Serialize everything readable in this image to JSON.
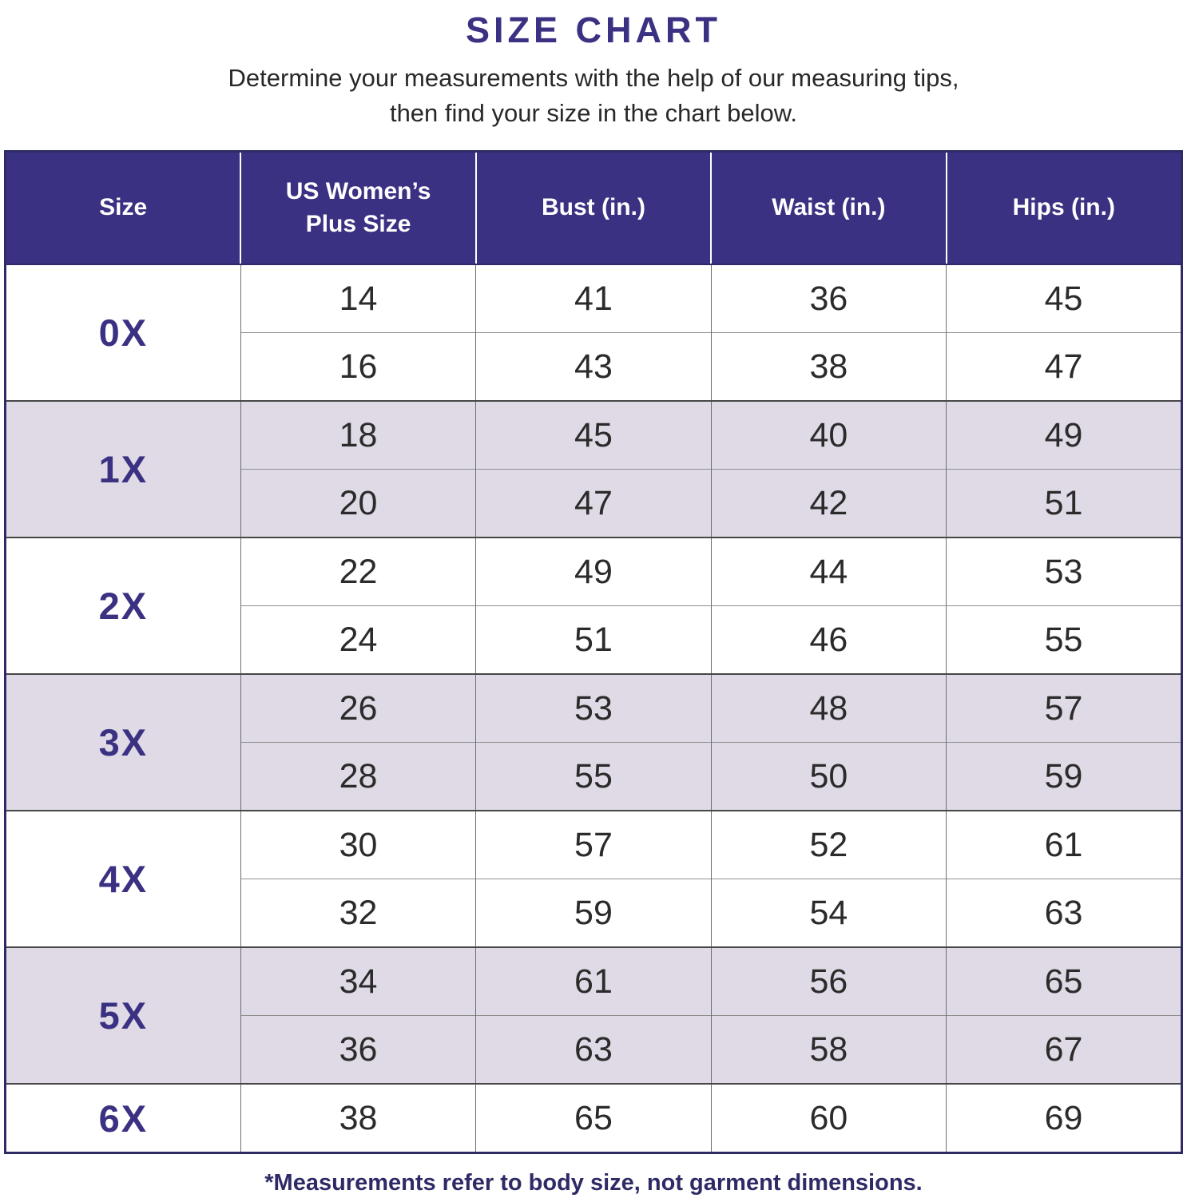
{
  "title": "SIZE CHART",
  "subtitle_line1": "Determine your measurements with the help of our measuring tips,",
  "subtitle_line2": "then find your size in the chart below.",
  "footnote": "*Measurements refer to body size, not garment dimensions.",
  "colors": {
    "accent_purple": "#3B3183",
    "row_alt_bg": "#DFDAE5",
    "row_bg": "#FFFFFF",
    "outer_border": "#2D2A66",
    "body_text": "#2B2B2B",
    "header_text": "#FFFFFF"
  },
  "chart_data": {
    "type": "table",
    "title": "SIZE CHART",
    "columns": [
      "Size",
      "US Women’s Plus Size",
      "Bust (in.)",
      "Waist (in.)",
      "Hips (in.)"
    ],
    "groups": [
      {
        "size": "0X",
        "rows": [
          [
            14,
            41,
            36,
            45
          ],
          [
            16,
            43,
            38,
            47
          ]
        ]
      },
      {
        "size": "1X",
        "rows": [
          [
            18,
            45,
            40,
            49
          ],
          [
            20,
            47,
            42,
            51
          ]
        ]
      },
      {
        "size": "2X",
        "rows": [
          [
            22,
            49,
            44,
            53
          ],
          [
            24,
            51,
            46,
            55
          ]
        ]
      },
      {
        "size": "3X",
        "rows": [
          [
            26,
            53,
            48,
            57
          ],
          [
            28,
            55,
            50,
            59
          ]
        ]
      },
      {
        "size": "4X",
        "rows": [
          [
            30,
            57,
            52,
            61
          ],
          [
            32,
            59,
            54,
            63
          ]
        ]
      },
      {
        "size": "5X",
        "rows": [
          [
            34,
            61,
            56,
            65
          ],
          [
            36,
            63,
            58,
            67
          ]
        ]
      },
      {
        "size": "6X",
        "rows": [
          [
            38,
            65,
            60,
            69
          ]
        ]
      }
    ],
    "layout_hints": {
      "shaded_groups": [
        "1X",
        "3X",
        "5X"
      ],
      "units": "inches",
      "measurement_basis": "body size, not garment dimensions"
    }
  }
}
